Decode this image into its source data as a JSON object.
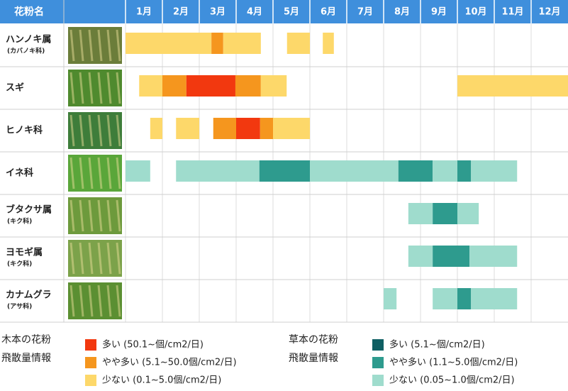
{
  "header": {
    "title": "花粉名",
    "months": [
      "1月",
      "2月",
      "3月",
      "4月",
      "5月",
      "6月",
      "7月",
      "8月",
      "9月",
      "10月",
      "11月",
      "12月"
    ]
  },
  "legend": {
    "woody": {
      "title": [
        "木本の花粉",
        "飛散量情報"
      ],
      "items": [
        {
          "label": "多い (50.1~個/cm2/日)",
          "color": "#f2380f"
        },
        {
          "label": "やや多い (5.1~50.0個/cm2/日)",
          "color": "#f5961e"
        },
        {
          "label": "少ない (0.1~5.0個/cm2/日)",
          "color": "#fdd86a"
        }
      ]
    },
    "herb": {
      "title": [
        "草本の花粉",
        "飛散量情報"
      ],
      "items": [
        {
          "label": "多い (5.1~個/cm2/日)",
          "color": "#0f5f63"
        },
        {
          "label": "やや多い (1.1~5.0個/cm2/日)",
          "color": "#2e9b8e"
        },
        {
          "label": "少ない (0.05~1.0個/cm2/日)",
          "color": "#9fdccd"
        }
      ]
    }
  },
  "rows": [
    {
      "name": "ハンノキ属",
      "sub": "(カバノキ科)",
      "group": "woody",
      "segments": [
        {
          "start": 0,
          "end": 2.33,
          "level": 2
        },
        {
          "start": 2.33,
          "end": 2.65,
          "level": 1
        },
        {
          "start": 2.65,
          "end": 3.67,
          "level": 2
        },
        {
          "start": 4.38,
          "end": 5.0,
          "level": 2
        },
        {
          "start": 5.35,
          "end": 5.65,
          "level": 2
        }
      ]
    },
    {
      "name": "スギ",
      "group": "woody",
      "segments": [
        {
          "start": 0.37,
          "end": 1.0,
          "level": 2
        },
        {
          "start": 1.0,
          "end": 1.65,
          "level": 1
        },
        {
          "start": 1.65,
          "end": 2.98,
          "level": 0
        },
        {
          "start": 2.98,
          "end": 3.67,
          "level": 1
        },
        {
          "start": 3.67,
          "end": 4.37,
          "level": 2
        },
        {
          "start": 9.0,
          "end": 12,
          "level": 2
        }
      ]
    },
    {
      "name": "ヒノキ科",
      "group": "woody",
      "segments": [
        {
          "start": 0.67,
          "end": 1.0,
          "level": 2
        },
        {
          "start": 1.37,
          "end": 2.0,
          "level": 2
        },
        {
          "start": 2.38,
          "end": 3.0,
          "level": 1
        },
        {
          "start": 3.0,
          "end": 3.65,
          "level": 0
        },
        {
          "start": 3.65,
          "end": 4.0,
          "level": 1
        },
        {
          "start": 4.0,
          "end": 5.0,
          "level": 2
        }
      ]
    },
    {
      "name": "イネ科",
      "group": "herb",
      "segments": [
        {
          "start": 0,
          "end": 0.67,
          "level": 2
        },
        {
          "start": 1.37,
          "end": 3.63,
          "level": 2
        },
        {
          "start": 3.63,
          "end": 5.0,
          "level": 1
        },
        {
          "start": 5.0,
          "end": 7.4,
          "level": 2
        },
        {
          "start": 7.4,
          "end": 8.33,
          "level": 1
        },
        {
          "start": 8.33,
          "end": 9.0,
          "level": 2
        },
        {
          "start": 9.0,
          "end": 9.37,
          "level": 1
        },
        {
          "start": 9.37,
          "end": 10.62,
          "level": 2
        }
      ]
    },
    {
      "name": "ブタクサ属",
      "sub": "(キク科)",
      "group": "herb",
      "segments": [
        {
          "start": 7.67,
          "end": 8.33,
          "level": 2
        },
        {
          "start": 8.33,
          "end": 9.0,
          "level": 1
        },
        {
          "start": 9.0,
          "end": 9.58,
          "level": 2
        }
      ]
    },
    {
      "name": "ヨモギ属",
      "sub": "(キク科)",
      "group": "herb",
      "segments": [
        {
          "start": 7.67,
          "end": 8.33,
          "level": 2
        },
        {
          "start": 8.33,
          "end": 9.33,
          "level": 1
        },
        {
          "start": 9.33,
          "end": 10.62,
          "level": 2
        }
      ]
    },
    {
      "name": "カナムグラ",
      "sub": "(アサ科)",
      "group": "herb",
      "segments": [
        {
          "start": 7.0,
          "end": 7.35,
          "level": 2
        },
        {
          "start": 8.33,
          "end": 9.0,
          "level": 2
        },
        {
          "start": 9.0,
          "end": 9.37,
          "level": 1
        },
        {
          "start": 9.37,
          "end": 10.62,
          "level": 2
        }
      ]
    }
  ]
}
